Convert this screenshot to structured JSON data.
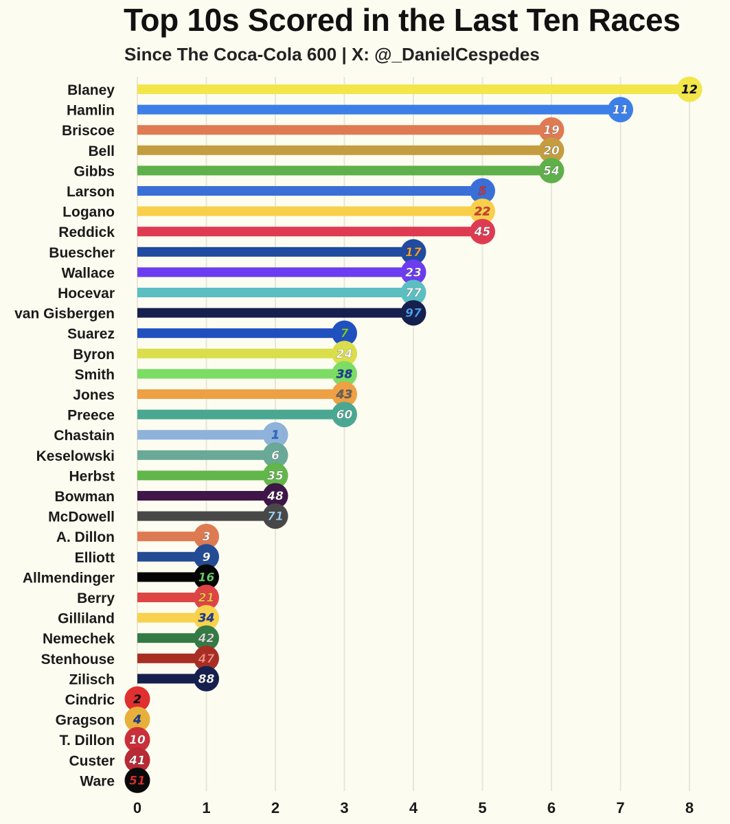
{
  "chart_data": {
    "type": "bar",
    "orientation": "horizontal",
    "title": "Top 10s Scored in the Last Ten Races",
    "subtitle": "Since The Coca-Cola 600 | X: @_DanielCespedes",
    "xlim": [
      0,
      8
    ],
    "xticks": [
      0,
      1,
      2,
      3,
      4,
      5,
      6,
      7,
      8
    ],
    "grid": "vertical",
    "legend": "none",
    "bars": [
      {
        "driver": "Blaney",
        "number": "12",
        "value": 8,
        "color": "#f2e64a",
        "badge": "#f2e64a",
        "num_color": "#111111"
      },
      {
        "driver": "Hamlin",
        "number": "11",
        "value": 7,
        "color": "#3d7fe8",
        "badge": "#3d7fe8",
        "num_color": "#ffffff"
      },
      {
        "driver": "Briscoe",
        "number": "19",
        "value": 6,
        "color": "#df7a52",
        "badge": "#df7a52",
        "num_color": "#ffffff"
      },
      {
        "driver": "Bell",
        "number": "20",
        "value": 6,
        "color": "#c39d3f",
        "badge": "#c39d3f",
        "num_color": "#ffffff"
      },
      {
        "driver": "Gibbs",
        "number": "54",
        "value": 6,
        "color": "#5fb04a",
        "badge": "#5fb04a",
        "num_color": "#ffffff"
      },
      {
        "driver": "Larson",
        "number": "5",
        "value": 5,
        "color": "#3a6fd8",
        "badge": "#3a6fd8",
        "num_color": "#d93a3a"
      },
      {
        "driver": "Logano",
        "number": "22",
        "value": 5,
        "color": "#f8cf4a",
        "badge": "#f8cf4a",
        "num_color": "#d93a3a"
      },
      {
        "driver": "Reddick",
        "number": "45",
        "value": 5,
        "color": "#de3b52",
        "badge": "#de3b52",
        "num_color": "#ffffff"
      },
      {
        "driver": "Buescher",
        "number": "17",
        "value": 4,
        "color": "#1f4ba0",
        "badge": "#1f4ba0",
        "num_color": "#f3a23a"
      },
      {
        "driver": "Wallace",
        "number": "23",
        "value": 4,
        "color": "#6b3cf0",
        "badge": "#6b3cf0",
        "num_color": "#ffffff"
      },
      {
        "driver": "Hocevar",
        "number": "77",
        "value": 4,
        "color": "#5bbfc2",
        "badge": "#5bbfc2",
        "num_color": "#ffffff"
      },
      {
        "driver": "van Gisbergen",
        "number": "97",
        "value": 4,
        "color": "#16204f",
        "badge": "#16204f",
        "num_color": "#4aa3f0"
      },
      {
        "driver": "Suarez",
        "number": "7",
        "value": 3,
        "color": "#2050c0",
        "badge": "#2050c0",
        "num_color": "#7ad03a"
      },
      {
        "driver": "Byron",
        "number": "24",
        "value": 3,
        "color": "#d9de4a",
        "badge": "#d9de4a",
        "num_color": "#ffffff"
      },
      {
        "driver": "Smith",
        "number": "38",
        "value": 3,
        "color": "#7cdc64",
        "badge": "#7cdc64",
        "num_color": "#1a3fa0"
      },
      {
        "driver": "Jones",
        "number": "43",
        "value": 3,
        "color": "#eea044",
        "badge": "#eea044",
        "num_color": "#666666"
      },
      {
        "driver": "Preece",
        "number": "60",
        "value": 3,
        "color": "#4aa892",
        "badge": "#4aa892",
        "num_color": "#ffffff"
      },
      {
        "driver": "Chastain",
        "number": "1",
        "value": 2,
        "color": "#8fb2da",
        "badge": "#8fb2da",
        "num_color": "#2a6fd8"
      },
      {
        "driver": "Keselowski",
        "number": "6",
        "value": 2,
        "color": "#6aa898",
        "badge": "#6aa898",
        "num_color": "#ffffff"
      },
      {
        "driver": "Herbst",
        "number": "35",
        "value": 2,
        "color": "#62b64a",
        "badge": "#62b64a",
        "num_color": "#ffffff"
      },
      {
        "driver": "Bowman",
        "number": "48",
        "value": 2,
        "color": "#3e1648",
        "badge": "#3e1648",
        "num_color": "#ffffff"
      },
      {
        "driver": "McDowell",
        "number": "71",
        "value": 2,
        "color": "#484848",
        "badge": "#484848",
        "num_color": "#9fd0f0"
      },
      {
        "driver": "A. Dillon",
        "number": "3",
        "value": 1,
        "color": "#de7a52",
        "badge": "#de7a52",
        "num_color": "#ffffff"
      },
      {
        "driver": "Elliott",
        "number": "9",
        "value": 1,
        "color": "#234c94",
        "badge": "#234c94",
        "num_color": "#ffffff"
      },
      {
        "driver": "Allmendinger",
        "number": "16",
        "value": 1,
        "color": "#050505",
        "badge": "#050505",
        "num_color": "#6ad06a"
      },
      {
        "driver": "Berry",
        "number": "21",
        "value": 1,
        "color": "#df4444",
        "badge": "#df4444",
        "num_color": "#f0c34a"
      },
      {
        "driver": "Gilliland",
        "number": "34",
        "value": 1,
        "color": "#f8d24e",
        "badge": "#f8d24e",
        "num_color": "#1a3fa0"
      },
      {
        "driver": "Nemechek",
        "number": "42",
        "value": 1,
        "color": "#347a44",
        "badge": "#347a44",
        "num_color": "#dddddd"
      },
      {
        "driver": "Stenhouse",
        "number": "47",
        "value": 1,
        "color": "#a82e24",
        "badge": "#a82e24",
        "num_color": "#ff8a7a"
      },
      {
        "driver": "Zilisch",
        "number": "88",
        "value": 1,
        "color": "#16204f",
        "badge": "#16204f",
        "num_color": "#ffffff"
      },
      {
        "driver": "Cindric",
        "number": "2",
        "value": 0,
        "color": "#e03030",
        "badge": "#e03030",
        "num_color": "#111111"
      },
      {
        "driver": "Gragson",
        "number": "4",
        "value": 0,
        "color": "#e6b03a",
        "badge": "#e6b03a",
        "num_color": "#1a3fa0"
      },
      {
        "driver": "T. Dillon",
        "number": "10",
        "value": 0,
        "color": "#cc2e3a",
        "badge": "#cc2e3a",
        "num_color": "#ffffff"
      },
      {
        "driver": "Custer",
        "number": "41",
        "value": 0,
        "color": "#b82a34",
        "badge": "#b82a34",
        "num_color": "#ffffff"
      },
      {
        "driver": "Ware",
        "number": "51",
        "value": 0,
        "color": "#0a0a0a",
        "badge": "#0a0a0a",
        "num_color": "#e03030"
      }
    ]
  }
}
